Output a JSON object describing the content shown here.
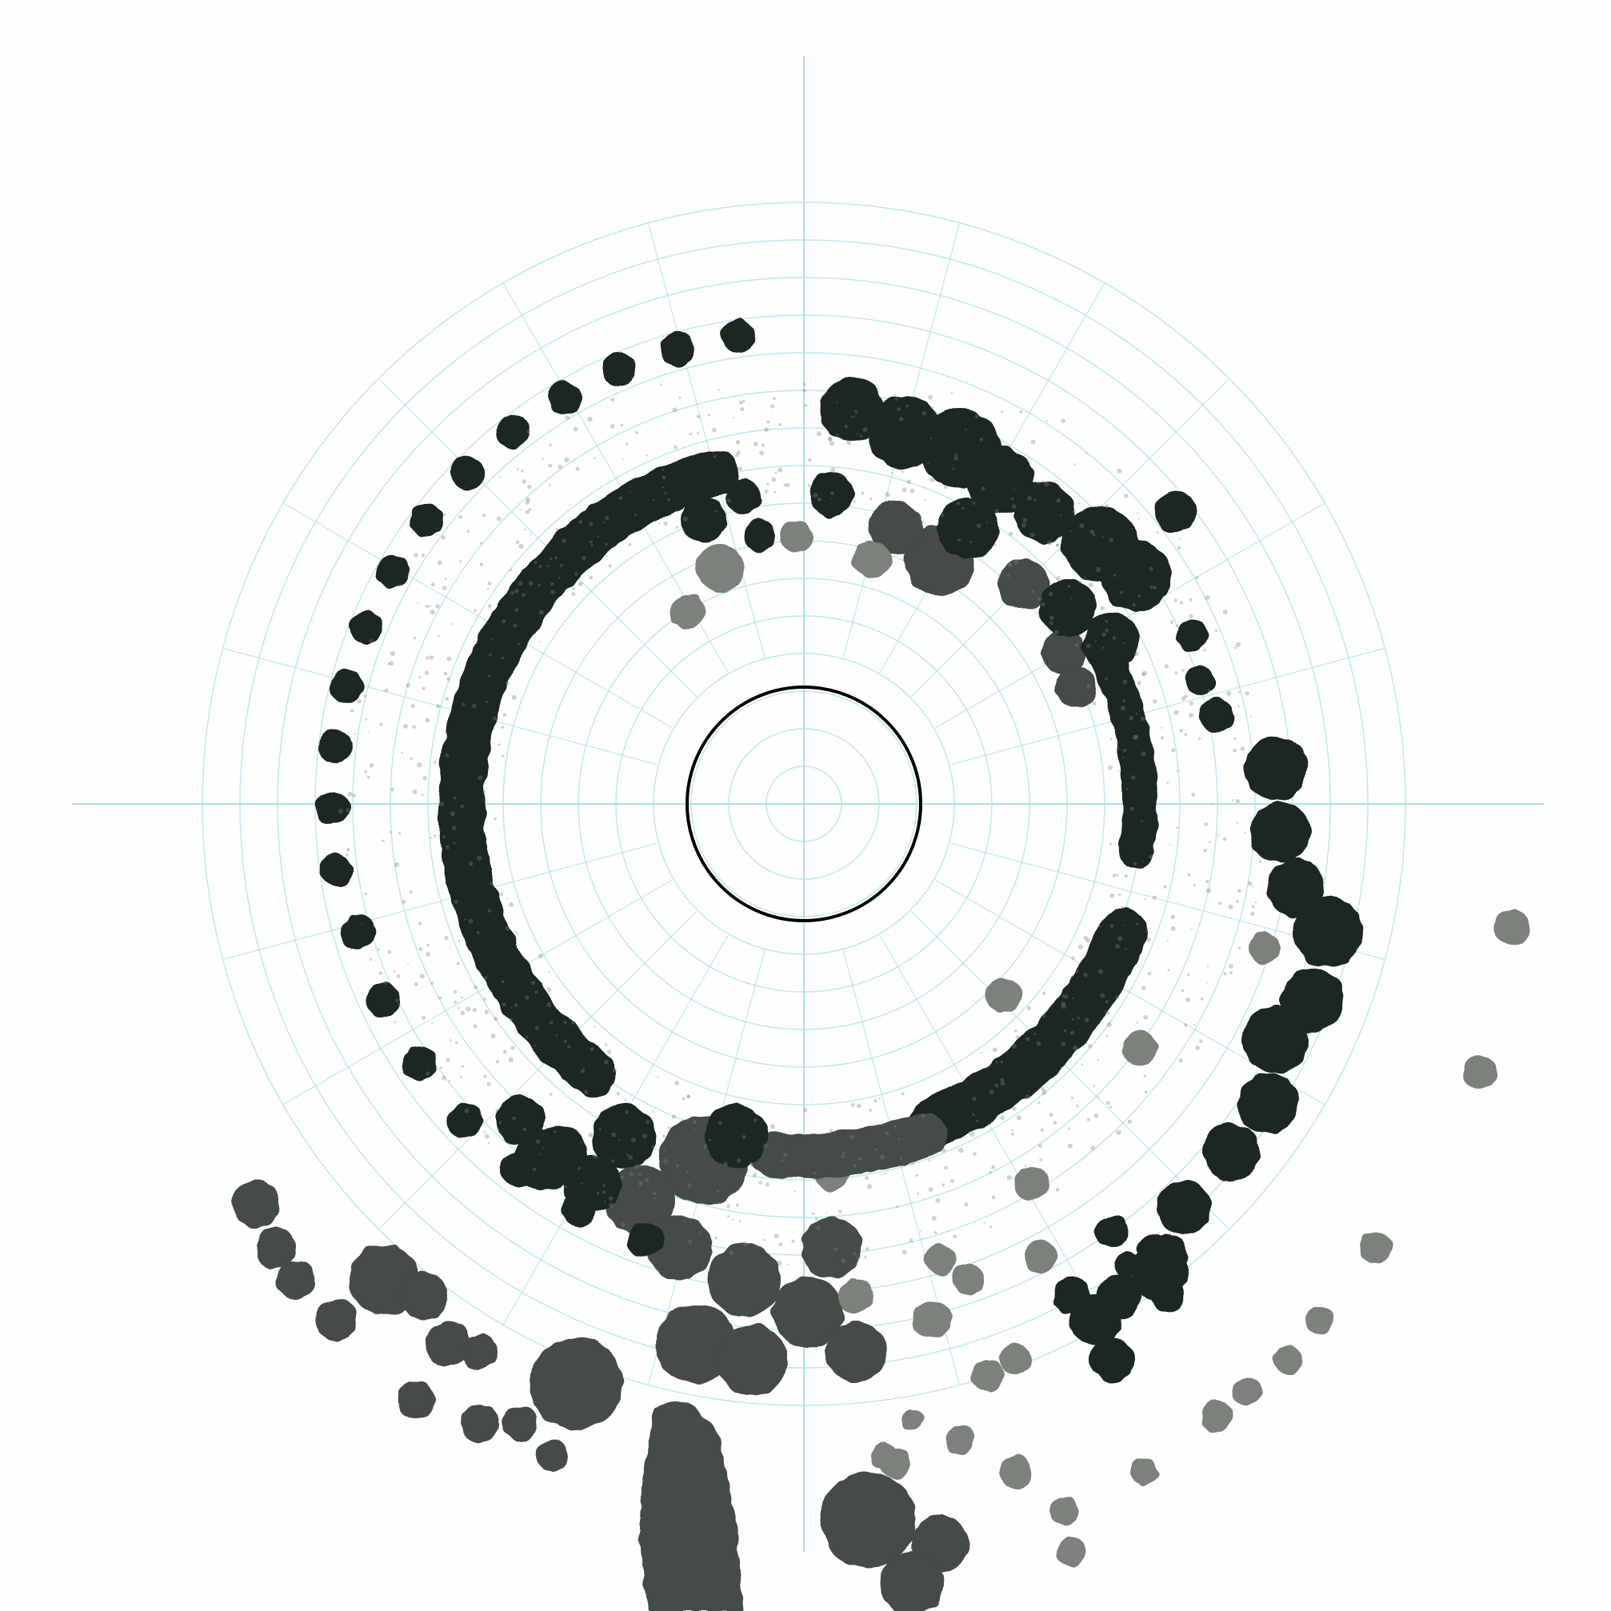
{
  "artwork": {
    "subject": "ink-blot-pattern-on-polar-grid",
    "colors": {
      "paper": "#fefefe",
      "grid": "#a9e2ea",
      "ink_dark": "#1f2622",
      "ink_mid": "#454b46",
      "ink_light": "#7c817c",
      "center_ring": "#000000"
    },
    "grid": {
      "visible": true,
      "rings": 16,
      "spokes": 24,
      "axes": true
    },
    "center_ring_visible": true
  }
}
